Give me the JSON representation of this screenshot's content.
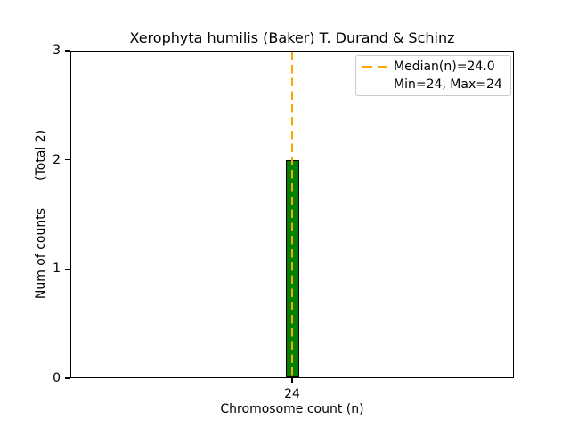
{
  "chart_data": {
    "type": "bar",
    "title": "Xerophyta humilis (Baker) T. Durand & Schinz",
    "xlabel": "Chromosome count (n)",
    "ylabel": "Num of counts       (Total 2)",
    "categories": [
      "24"
    ],
    "values": [
      2
    ],
    "total_counts": 2,
    "ylim": [
      0,
      3
    ],
    "yticks": [
      "0",
      "1",
      "2",
      "3"
    ],
    "xticks": [
      "24"
    ],
    "median": "24.0",
    "min": "24",
    "max": "24",
    "grid": false,
    "legend": {
      "position": "upper right",
      "entries": [
        "Median(n)=24.0",
        "Min=24, Max=24"
      ]
    },
    "colors": {
      "bar_fill": "#008000",
      "bar_edge": "#000000",
      "median_line": "#FFA500",
      "axis": "#000000",
      "legend_border": "#cccccc",
      "background": "#ffffff"
    }
  }
}
